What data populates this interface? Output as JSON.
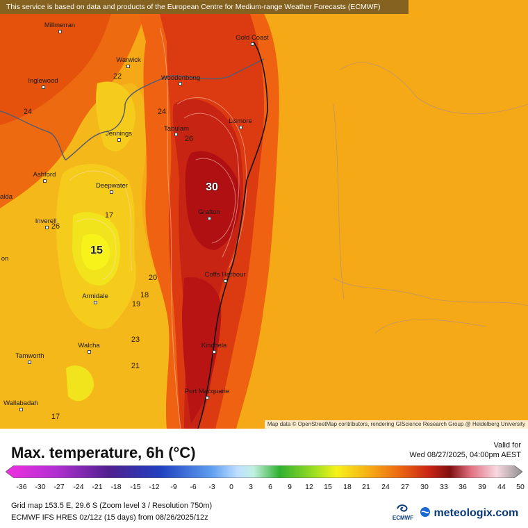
{
  "banner": "This service is based on data and products of the European Centre for Medium-range Weather Forecasts (ECMWF)",
  "attribution": "Map data © OpenStreetMap contributors, rendering GIScience Research Group @ Heidelberg University",
  "colors": {
    "ocean": "#f5a514",
    "warm_ocean": "#f3a112",
    "hot": "#b81414",
    "mild": "#f4d31c"
  },
  "cities": [
    {
      "name": "Millmerran"
    },
    {
      "name": "Gold Coast"
    },
    {
      "name": "Warwick"
    },
    {
      "name": "Inglewood"
    },
    {
      "name": "Woodenbong"
    },
    {
      "name": "Lismore"
    },
    {
      "name": "Tabulam"
    },
    {
      "name": "Jennings"
    },
    {
      "name": "Ashford"
    },
    {
      "name": "Deepwater"
    },
    {
      "name": "alda"
    },
    {
      "name": "Grafton"
    },
    {
      "name": "Inverell"
    },
    {
      "name": "on"
    },
    {
      "name": "Coffs Harbour"
    },
    {
      "name": "Armidale"
    },
    {
      "name": "Kinchela"
    },
    {
      "name": "Walcha"
    },
    {
      "name": "Tamworth"
    },
    {
      "name": "Port Macquarie"
    },
    {
      "name": "Wallabadah"
    }
  ],
  "contour_labels": [
    "22",
    "24",
    "24",
    "26",
    "30",
    "17",
    "26",
    "15",
    "20",
    "18",
    "19",
    "23",
    "21",
    "17"
  ],
  "legend": {
    "title": "Max. temperature, 6h (°C)",
    "valid_label": "Valid for",
    "valid_value": "Wed 08/27/2025, 04:00pm AEST",
    "ticks": [
      "-36",
      "-30",
      "-27",
      "-24",
      "-21",
      "-18",
      "-15",
      "-12",
      "-9",
      "-6",
      "-3",
      "0",
      "3",
      "6",
      "9",
      "12",
      "15",
      "18",
      "21",
      "24",
      "27",
      "30",
      "33",
      "36",
      "39",
      "44",
      "50"
    ],
    "info_line1": "Grid map 153.5 E, 29.6 S (Zoom level 3 / Resolution 750m)",
    "info_line2": "ECMWF IFS HRES 0z/12z (15 days) from  08/26/2025/12z",
    "ecmwf_logo": "ECMWF",
    "brand": "meteologix.com"
  }
}
